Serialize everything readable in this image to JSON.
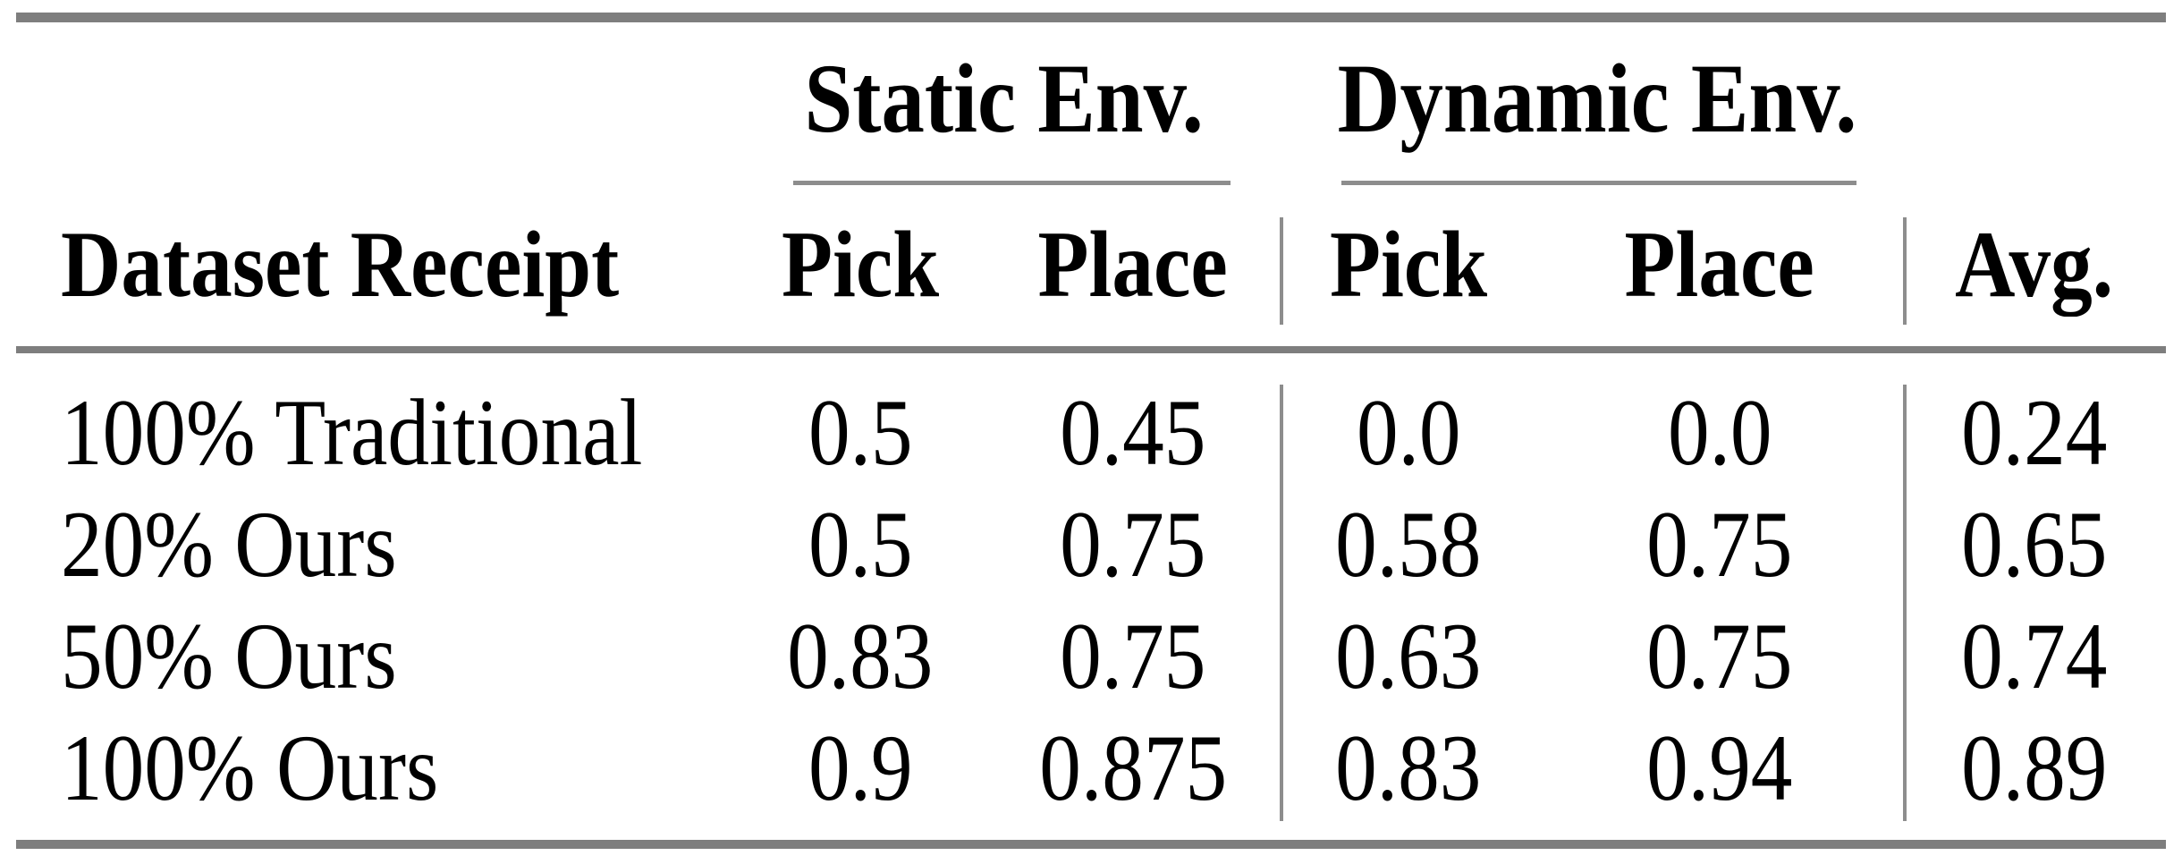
{
  "table": {
    "group_headers": [
      {
        "label": "Static Env."
      },
      {
        "label": "Dynamic Env."
      }
    ],
    "column_headers": {
      "row_header": "Dataset Receipt",
      "static_pick": "Pick",
      "static_place": "Place",
      "dynamic_pick": "Pick",
      "dynamic_place": "Place",
      "avg": "Avg."
    },
    "rows": [
      {
        "label": "100% Traditional",
        "static_pick": "0.5",
        "static_place": "0.45",
        "dynamic_pick": "0.0",
        "dynamic_place": "0.0",
        "avg": "0.24"
      },
      {
        "label": "20% Ours",
        "static_pick": "0.5",
        "static_place": "0.75",
        "dynamic_pick": "0.58",
        "dynamic_place": "0.75",
        "avg": "0.65"
      },
      {
        "label": "50% Ours",
        "static_pick": "0.83",
        "static_place": "0.75",
        "dynamic_pick": "0.63",
        "dynamic_place": "0.75",
        "avg": "0.74"
      },
      {
        "label": "100% Ours",
        "static_pick": "0.9",
        "static_place": "0.875",
        "dynamic_pick": "0.83",
        "dynamic_place": "0.94",
        "avg": "0.89"
      }
    ],
    "colors": {
      "text": "#000000",
      "thick_rule": "#7e7e7e",
      "thin_rule": "#8d8d8d",
      "background": "#ffffff"
    }
  }
}
